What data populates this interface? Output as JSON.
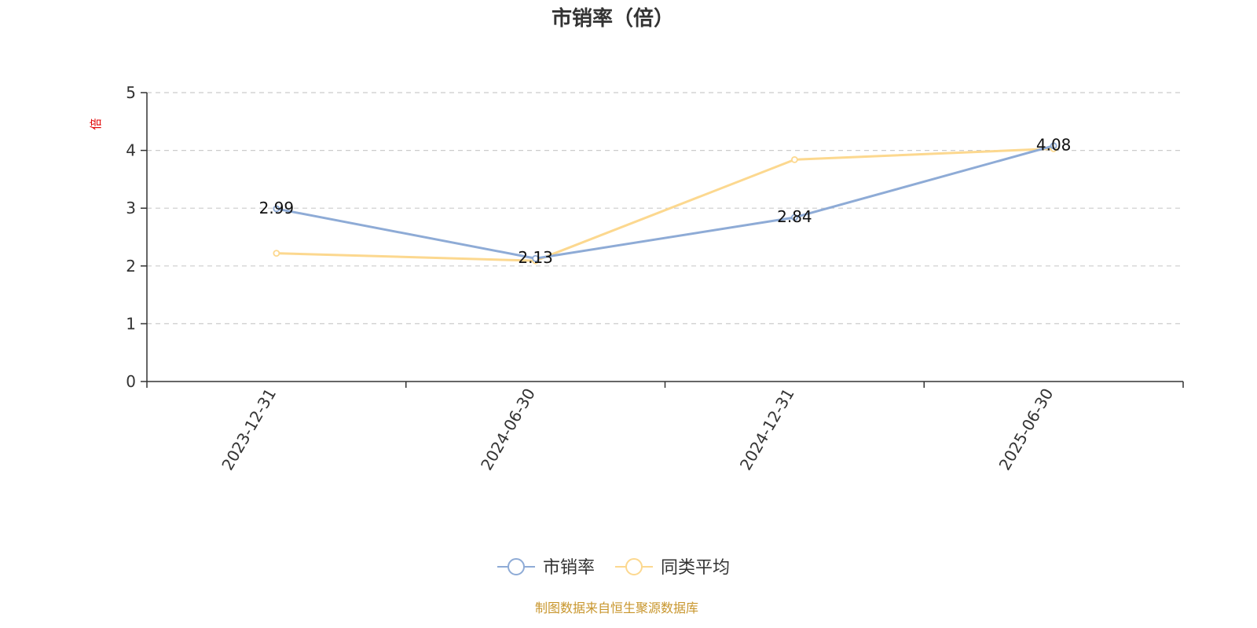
{
  "chart_data": {
    "type": "line",
    "title": "市销率（倍）",
    "ylabel": "倍",
    "ylim": [
      0,
      5
    ],
    "yticks": [
      0,
      1,
      2,
      3,
      4,
      5
    ],
    "categories": [
      "2023-12-31",
      "2024-06-30",
      "2024-12-31",
      "2025-06-30"
    ],
    "series": [
      {
        "name": "市销率",
        "values": [
          2.99,
          2.13,
          2.84,
          4.08
        ],
        "color": "#8eabd6",
        "show_labels": true
      },
      {
        "name": "同类平均",
        "values": [
          2.22,
          2.09,
          3.84,
          4.03
        ],
        "color": "#fcd88f",
        "show_labels": false
      }
    ],
    "grid": true,
    "legend_position": "bottom-center",
    "source_note": "制图数据来自恒生聚源数据库",
    "colors": {
      "axis": "#333333",
      "grid": "#cccccc",
      "unit": "#e00000",
      "source": "#c8962d"
    }
  }
}
